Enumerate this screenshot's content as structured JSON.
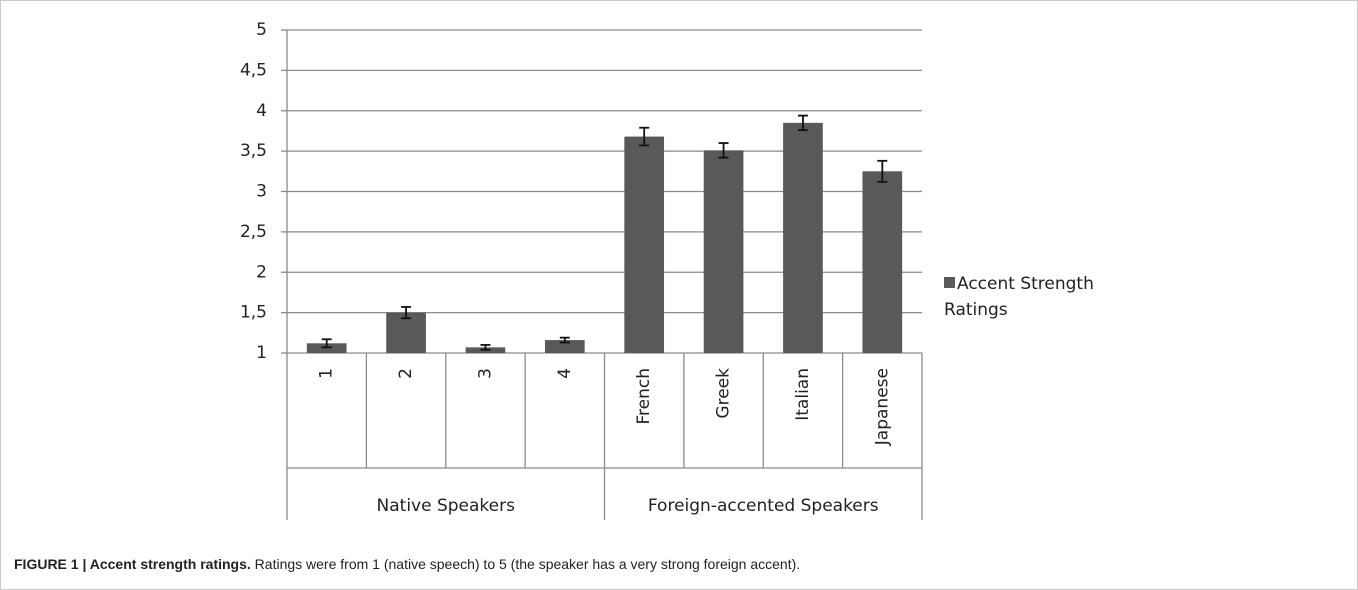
{
  "chart_data": {
    "type": "bar",
    "categories": [
      "1",
      "2",
      "3",
      "4",
      "French",
      "Greek",
      "Italian",
      "Japanese"
    ],
    "category_groups": [
      "Native Speakers",
      "Native Speakers",
      "Native Speakers",
      "Native Speakers",
      "Foreign-accented Speakers",
      "Foreign-accented Speakers",
      "Foreign-accented Speakers",
      "Foreign-accented Speakers"
    ],
    "series": [
      {
        "name": "Accent Strength Ratings",
        "color": "#595959",
        "values": [
          1.12,
          1.5,
          1.07,
          1.16,
          3.68,
          3.51,
          3.85,
          3.25
        ],
        "errors": [
          0.05,
          0.07,
          0.03,
          0.03,
          0.11,
          0.09,
          0.09,
          0.13
        ]
      }
    ],
    "ylim": [
      1,
      5
    ],
    "yticks": [
      1,
      {
        "value": 1.5,
        "label": "1,5"
      },
      2,
      {
        "value": 2.5,
        "label": "2,5"
      },
      3,
      {
        "value": 3.5,
        "label": "3,5"
      },
      4,
      {
        "value": 4.5,
        "label": "4,5"
      },
      5
    ],
    "grid": true,
    "legend": "right",
    "caption": {
      "label": "FIGURE 1 | Accent strength ratings.",
      "text": "Ratings were from 1 (native speech) to 5 (the speaker has a very strong foreign accent)."
    }
  }
}
